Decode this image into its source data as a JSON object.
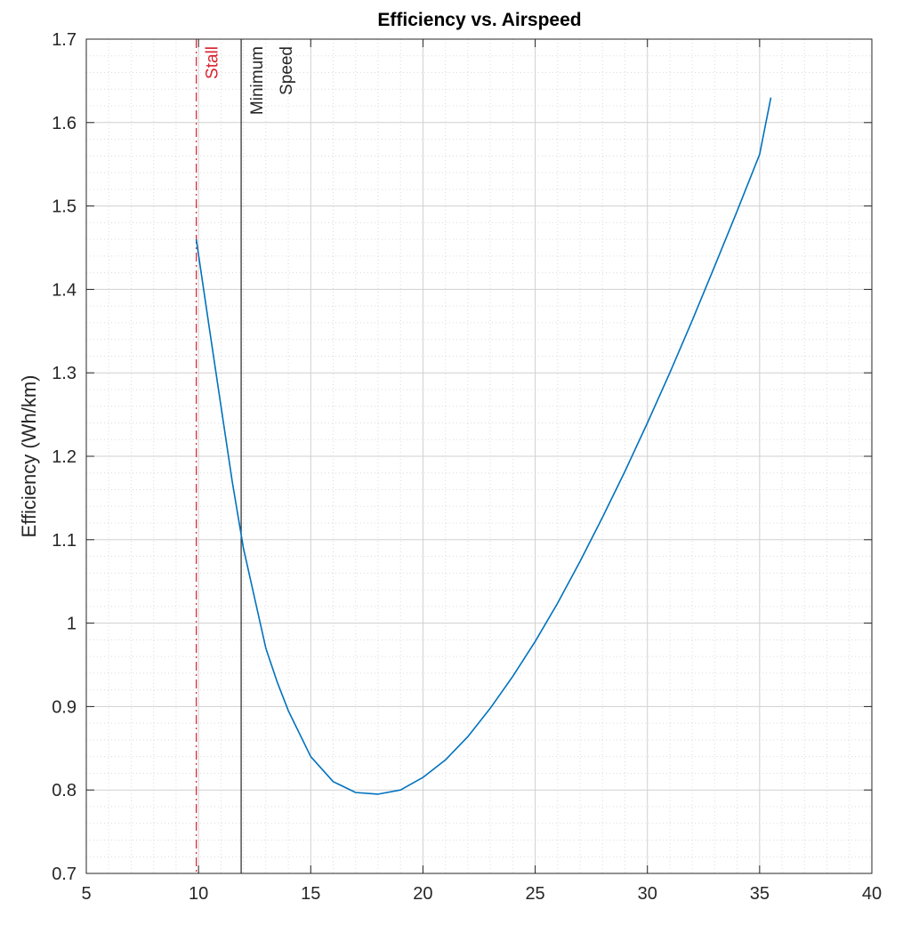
{
  "chart_data": {
    "type": "line",
    "title": "Efficiency vs. Airspeed",
    "xlabel": "",
    "ylabel": "Efficiency (Wh/km)",
    "xlim": [
      5,
      40
    ],
    "ylim": [
      0.7,
      1.7
    ],
    "xticks": [
      5,
      10,
      15,
      20,
      25,
      30,
      35,
      40
    ],
    "yticks": [
      0.7,
      0.8,
      0.9,
      1.0,
      1.1,
      1.2,
      1.3,
      1.4,
      1.5,
      1.6,
      1.7
    ],
    "xtick_labels": [
      "5",
      "10",
      "15",
      "20",
      "25",
      "30",
      "35",
      "40"
    ],
    "ytick_labels": [
      "0.7",
      "0.8",
      "0.9",
      "1",
      "1.1",
      "1.2",
      "1.3",
      "1.4",
      "1.5",
      "1.6",
      "1.7"
    ],
    "grid": true,
    "minor_grid": true,
    "series": [
      {
        "color": "#0072BD",
        "x": [
          9.9,
          10.5,
          11,
          11.5,
          12,
          12.5,
          13,
          13.5,
          14,
          15,
          16,
          17,
          18,
          19,
          20,
          21,
          22,
          23,
          24,
          25,
          26,
          27,
          28,
          29,
          30,
          31,
          32,
          33,
          34,
          35,
          35.5
        ],
        "y": [
          1.46,
          1.35,
          1.26,
          1.17,
          1.09,
          1.03,
          0.97,
          0.93,
          0.895,
          0.84,
          0.81,
          0.797,
          0.795,
          0.8,
          0.815,
          0.836,
          0.864,
          0.898,
          0.936,
          0.978,
          1.024,
          1.074,
          1.127,
          1.182,
          1.24,
          1.3,
          1.363,
          1.428,
          1.494,
          1.562,
          1.63
        ]
      }
    ],
    "vlines": [
      {
        "x": 9.9,
        "label": "Stall",
        "color": "#D9232E",
        "style": "dashdot"
      },
      {
        "x": 11.9,
        "label_lines": [
          "Minimum",
          "Speed"
        ],
        "color": "#262626",
        "style": "solid"
      }
    ]
  }
}
